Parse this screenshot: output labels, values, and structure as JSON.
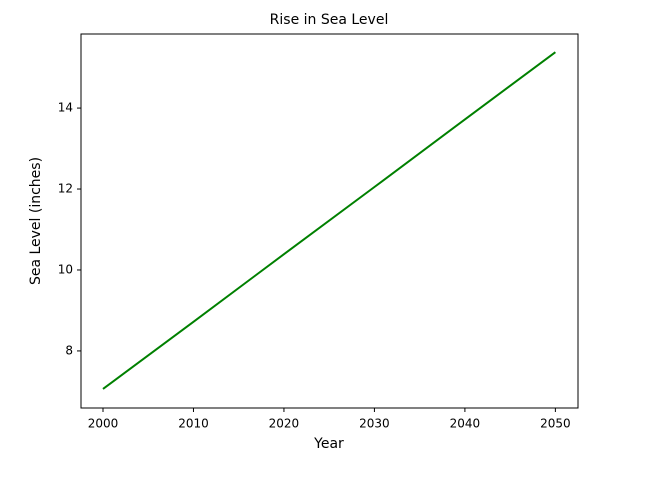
{
  "chart_data": {
    "type": "line",
    "title": "Rise in Sea Level",
    "x_label": "Year",
    "y_label": "Sea Level (inches)",
    "x": [
      2000,
      2010,
      2020,
      2030,
      2040,
      2050
    ],
    "series": [
      {
        "color": "#008000",
        "values": [
          7.06,
          8.72,
          10.39,
          12.05,
          13.72,
          15.38
        ]
      }
    ],
    "xlim": [
      1997.57,
      2052.5
    ],
    "xticks": [
      2000,
      2010,
      2020,
      2030,
      2040,
      2050
    ],
    "ylim": [
      6.59,
      15.83
    ],
    "yticks": [
      8,
      10,
      12,
      14
    ]
  }
}
